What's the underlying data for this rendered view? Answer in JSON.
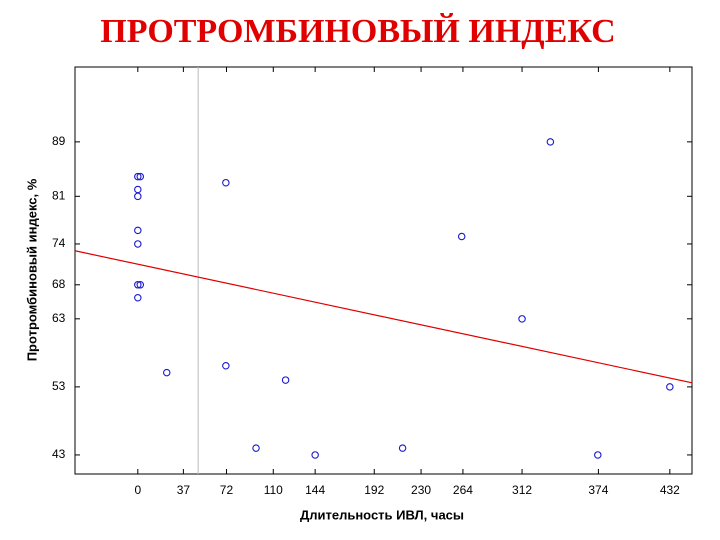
{
  "chart_data": {
    "type": "scatter",
    "title": "ПРОТРОМБИНОВЫЙ ИНДЕКС",
    "x_label": "Длительность ИВЛ, часы",
    "y_label": "Протромбиновый индекс, %",
    "x": [
      0,
      2,
      0,
      0,
      0,
      0,
      0,
      2,
      0,
      23.5,
      71.5,
      71.5,
      96,
      120,
      144,
      215,
      263,
      312,
      335,
      373.5,
      432
    ],
    "values": [
      83.9,
      83.9,
      82,
      81,
      76,
      74,
      68,
      68,
      66.1,
      55.1,
      83,
      56.1,
      44,
      54,
      43,
      44,
      75.1,
      63,
      89,
      43,
      53
    ],
    "color": "#1a1ad0",
    "fit_x": [
      -51,
      450
    ],
    "fit_y": [
      73,
      53.6
    ],
    "fit_color": "#e00000",
    "reference_x": 49,
    "xlim": [
      -51,
      450
    ],
    "ylim": [
      40.2,
      100
    ],
    "xticks": [
      0,
      37,
      72,
      110,
      144,
      192,
      230,
      264,
      312,
      374,
      432
    ],
    "yticks": [
      43,
      53,
      63,
      68,
      74,
      81,
      89
    ]
  }
}
